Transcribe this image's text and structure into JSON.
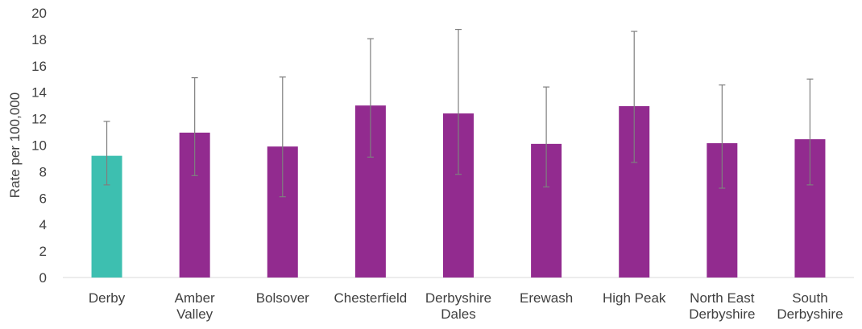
{
  "chart_data": {
    "type": "bar",
    "title": "",
    "xlabel": "",
    "ylabel": "Rate per 100,000",
    "ylim": [
      0,
      20
    ],
    "yticks": [
      0,
      2,
      4,
      6,
      8,
      10,
      12,
      14,
      16,
      18,
      20
    ],
    "grid": false,
    "legend": "none",
    "categories": [
      [
        "Derby"
      ],
      [
        "Amber",
        "Valley"
      ],
      [
        "Bolsover"
      ],
      [
        "Chesterfield"
      ],
      [
        "Derbyshire",
        "Dales"
      ],
      [
        "Erewash"
      ],
      [
        "High Peak"
      ],
      [
        "North East",
        "Derbyshire"
      ],
      [
        "South",
        "Derbyshire"
      ]
    ],
    "values": [
      9.2,
      10.95,
      9.9,
      13.0,
      12.4,
      10.1,
      12.95,
      10.15,
      10.45
    ],
    "error_low": [
      7.0,
      7.7,
      6.1,
      9.1,
      7.8,
      6.85,
      8.7,
      6.75,
      7.0
    ],
    "error_high": [
      11.8,
      15.1,
      15.15,
      18.05,
      18.75,
      14.4,
      18.6,
      14.55,
      15.0
    ],
    "colors": [
      "#3dbfb0",
      "#922b8f",
      "#922b8f",
      "#922b8f",
      "#922b8f",
      "#922b8f",
      "#922b8f",
      "#922b8f",
      "#922b8f"
    ]
  }
}
